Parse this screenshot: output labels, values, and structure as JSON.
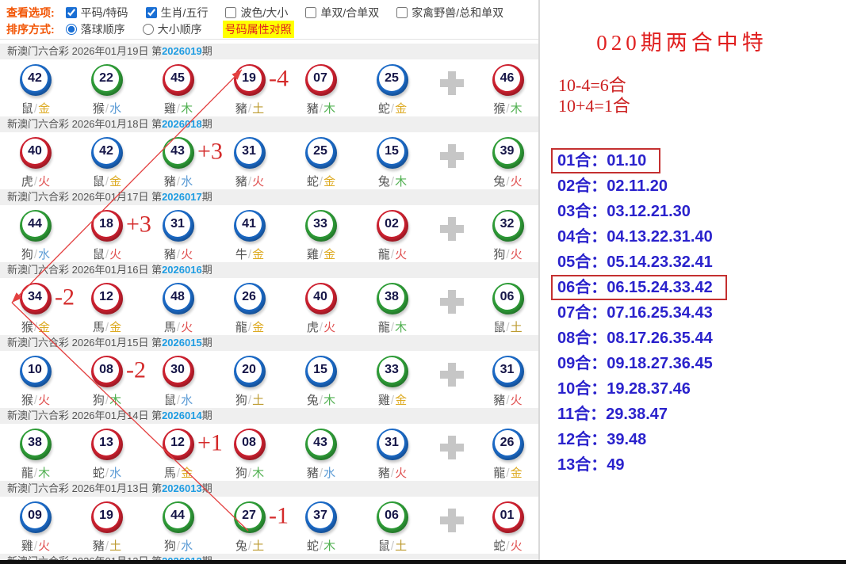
{
  "toolbar": {
    "view_label": "查看选项:",
    "view_options": [
      {
        "label": "平码/特码",
        "checked": true
      },
      {
        "label": "生肖/五行",
        "checked": true
      },
      {
        "label": "波色/大小",
        "checked": false
      },
      {
        "label": "单双/合单双",
        "checked": false
      },
      {
        "label": "家禽野兽/总和单双",
        "checked": false
      }
    ],
    "sort_label": "排序方式:",
    "sort_options": [
      {
        "label": "落球顺序",
        "selected": true
      },
      {
        "label": "大小顺序",
        "selected": false
      }
    ],
    "compare_link": "号码属性对照"
  },
  "draws": [
    {
      "header": {
        "prefix": "新澳门六合彩 2026年01月19日 第",
        "period": "2026019",
        "suffix": "期"
      },
      "balls": [
        {
          "num": "42",
          "color": "blue",
          "zodiac": "鼠",
          "element": "金"
        },
        {
          "num": "22",
          "color": "green",
          "zodiac": "猴",
          "element": "水"
        },
        {
          "num": "45",
          "color": "red",
          "zodiac": "雞",
          "element": "木"
        },
        {
          "num": "19",
          "color": "red",
          "zodiac": "豬",
          "element": "土",
          "annotation": "-4"
        },
        {
          "num": "07",
          "color": "red",
          "zodiac": "豬",
          "element": "木"
        },
        {
          "num": "25",
          "color": "blue",
          "zodiac": "蛇",
          "element": "金"
        },
        {
          "num": "46",
          "color": "red",
          "zodiac": "猴",
          "element": "木"
        }
      ]
    },
    {
      "header": {
        "prefix": "新澳门六合彩 2026年01月18日 第",
        "period": "2026018",
        "suffix": "期"
      },
      "balls": [
        {
          "num": "40",
          "color": "red",
          "zodiac": "虎",
          "element": "火"
        },
        {
          "num": "42",
          "color": "blue",
          "zodiac": "鼠",
          "element": "金"
        },
        {
          "num": "43",
          "color": "green",
          "zodiac": "豬",
          "element": "水",
          "annotation": "+3"
        },
        {
          "num": "31",
          "color": "blue",
          "zodiac": "豬",
          "element": "火"
        },
        {
          "num": "25",
          "color": "blue",
          "zodiac": "蛇",
          "element": "金"
        },
        {
          "num": "15",
          "color": "blue",
          "zodiac": "兔",
          "element": "木"
        },
        {
          "num": "39",
          "color": "green",
          "zodiac": "兔",
          "element": "火"
        }
      ]
    },
    {
      "header": {
        "prefix": "新澳门六合彩 2026年01月17日 第",
        "period": "2026017",
        "suffix": "期"
      },
      "balls": [
        {
          "num": "44",
          "color": "green",
          "zodiac": "狗",
          "element": "水"
        },
        {
          "num": "18",
          "color": "red",
          "zodiac": "鼠",
          "element": "火",
          "annotation": "+3"
        },
        {
          "num": "31",
          "color": "blue",
          "zodiac": "豬",
          "element": "火"
        },
        {
          "num": "41",
          "color": "blue",
          "zodiac": "牛",
          "element": "金"
        },
        {
          "num": "33",
          "color": "green",
          "zodiac": "雞",
          "element": "金"
        },
        {
          "num": "02",
          "color": "red",
          "zodiac": "龍",
          "element": "火"
        },
        {
          "num": "32",
          "color": "green",
          "zodiac": "狗",
          "element": "火"
        }
      ]
    },
    {
      "header": {
        "prefix": "新澳门六合彩 2026年01月16日 第",
        "period": "2026016",
        "suffix": "期"
      },
      "balls": [
        {
          "num": "34",
          "color": "red",
          "zodiac": "猴",
          "element": "金",
          "annotation": "-2"
        },
        {
          "num": "12",
          "color": "red",
          "zodiac": "馬",
          "element": "金"
        },
        {
          "num": "48",
          "color": "blue",
          "zodiac": "馬",
          "element": "火"
        },
        {
          "num": "26",
          "color": "blue",
          "zodiac": "龍",
          "element": "金"
        },
        {
          "num": "40",
          "color": "red",
          "zodiac": "虎",
          "element": "火"
        },
        {
          "num": "38",
          "color": "green",
          "zodiac": "龍",
          "element": "木"
        },
        {
          "num": "06",
          "color": "green",
          "zodiac": "鼠",
          "element": "土"
        }
      ]
    },
    {
      "header": {
        "prefix": "新澳门六合彩 2026年01月15日 第",
        "period": "2026015",
        "suffix": "期"
      },
      "balls": [
        {
          "num": "10",
          "color": "blue",
          "zodiac": "猴",
          "element": "火"
        },
        {
          "num": "08",
          "color": "red",
          "zodiac": "狗",
          "element": "木",
          "annotation": "-2"
        },
        {
          "num": "30",
          "color": "red",
          "zodiac": "鼠",
          "element": "水"
        },
        {
          "num": "20",
          "color": "blue",
          "zodiac": "狗",
          "element": "土"
        },
        {
          "num": "15",
          "color": "blue",
          "zodiac": "兔",
          "element": "木"
        },
        {
          "num": "33",
          "color": "green",
          "zodiac": "雞",
          "element": "金"
        },
        {
          "num": "31",
          "color": "blue",
          "zodiac": "豬",
          "element": "火"
        }
      ]
    },
    {
      "header": {
        "prefix": "新澳门六合彩 2026年01月14日 第",
        "period": "2026014",
        "suffix": "期"
      },
      "balls": [
        {
          "num": "38",
          "color": "green",
          "zodiac": "龍",
          "element": "木"
        },
        {
          "num": "13",
          "color": "red",
          "zodiac": "蛇",
          "element": "水"
        },
        {
          "num": "12",
          "color": "red",
          "zodiac": "馬",
          "element": "金",
          "annotation": "+1"
        },
        {
          "num": "08",
          "color": "red",
          "zodiac": "狗",
          "element": "木"
        },
        {
          "num": "43",
          "color": "green",
          "zodiac": "豬",
          "element": "水"
        },
        {
          "num": "31",
          "color": "blue",
          "zodiac": "豬",
          "element": "火"
        },
        {
          "num": "26",
          "color": "blue",
          "zodiac": "龍",
          "element": "金"
        }
      ]
    },
    {
      "header": {
        "prefix": "新澳门六合彩 2026年01月13日 第",
        "period": "2026013",
        "suffix": "期"
      },
      "balls": [
        {
          "num": "09",
          "color": "blue",
          "zodiac": "雞",
          "element": "火"
        },
        {
          "num": "19",
          "color": "red",
          "zodiac": "豬",
          "element": "土"
        },
        {
          "num": "44",
          "color": "green",
          "zodiac": "狗",
          "element": "水"
        },
        {
          "num": "27",
          "color": "green",
          "zodiac": "兔",
          "element": "土",
          "annotation": "-1"
        },
        {
          "num": "37",
          "color": "blue",
          "zodiac": "蛇",
          "element": "木"
        },
        {
          "num": "06",
          "color": "green",
          "zodiac": "鼠",
          "element": "土"
        },
        {
          "num": "01",
          "color": "red",
          "zodiac": "蛇",
          "element": "火"
        }
      ]
    }
  ],
  "partial_row": {
    "prefix": "新澳门六合彩 2026年01月12日 第",
    "period": "2026012",
    "suffix": "期"
  },
  "right_panel": {
    "title": "020期两合中特",
    "formulas": [
      "10-4=6合",
      "10+4=1合"
    ],
    "colon": "：",
    "combos": [
      {
        "label": "01合",
        "numbers": "01.10",
        "boxed": true
      },
      {
        "label": "02合",
        "numbers": "02.11.20",
        "boxed": false
      },
      {
        "label": "03合",
        "numbers": "03.12.21.30",
        "boxed": false
      },
      {
        "label": "04合",
        "numbers": "04.13.22.31.40",
        "boxed": false
      },
      {
        "label": "05合",
        "numbers": "05.14.23.32.41",
        "boxed": false
      },
      {
        "label": "06合",
        "numbers": "06.15.24.33.42",
        "boxed": true
      },
      {
        "label": "07合",
        "numbers": "07.16.25.34.43",
        "boxed": false
      },
      {
        "label": "08合",
        "numbers": "08.17.26.35.44",
        "boxed": false
      },
      {
        "label": "09合",
        "numbers": "09.18.27.36.45",
        "boxed": false
      },
      {
        "label": "10合",
        "numbers": "19.28.37.46",
        "boxed": false
      },
      {
        "label": "11合",
        "numbers": "29.38.47",
        "boxed": false
      },
      {
        "label": "12合",
        "numbers": "39.48",
        "boxed": false
      },
      {
        "label": "13合",
        "numbers": "49",
        "boxed": false
      }
    ]
  },
  "colors": {
    "ball_red": "#cf2130",
    "ball_blue": "#1c6bc8",
    "ball_green": "#2f9e38",
    "element_金": "#ddaa22",
    "element_水": "#5b9bd5",
    "element_木": "#53b153",
    "element_火": "#e05252",
    "element_土": "#bd9b30",
    "annotation_red": "#d42a2a",
    "trend_line_red": "#e34040",
    "combo_blue": "#2a22cc",
    "combo_box_red": "#c43030",
    "period_blue": "#1e9ce2",
    "highlight_yellow": "#ffff00",
    "toolbar_label_orange": "#f25505",
    "title_red": "#e02020"
  }
}
